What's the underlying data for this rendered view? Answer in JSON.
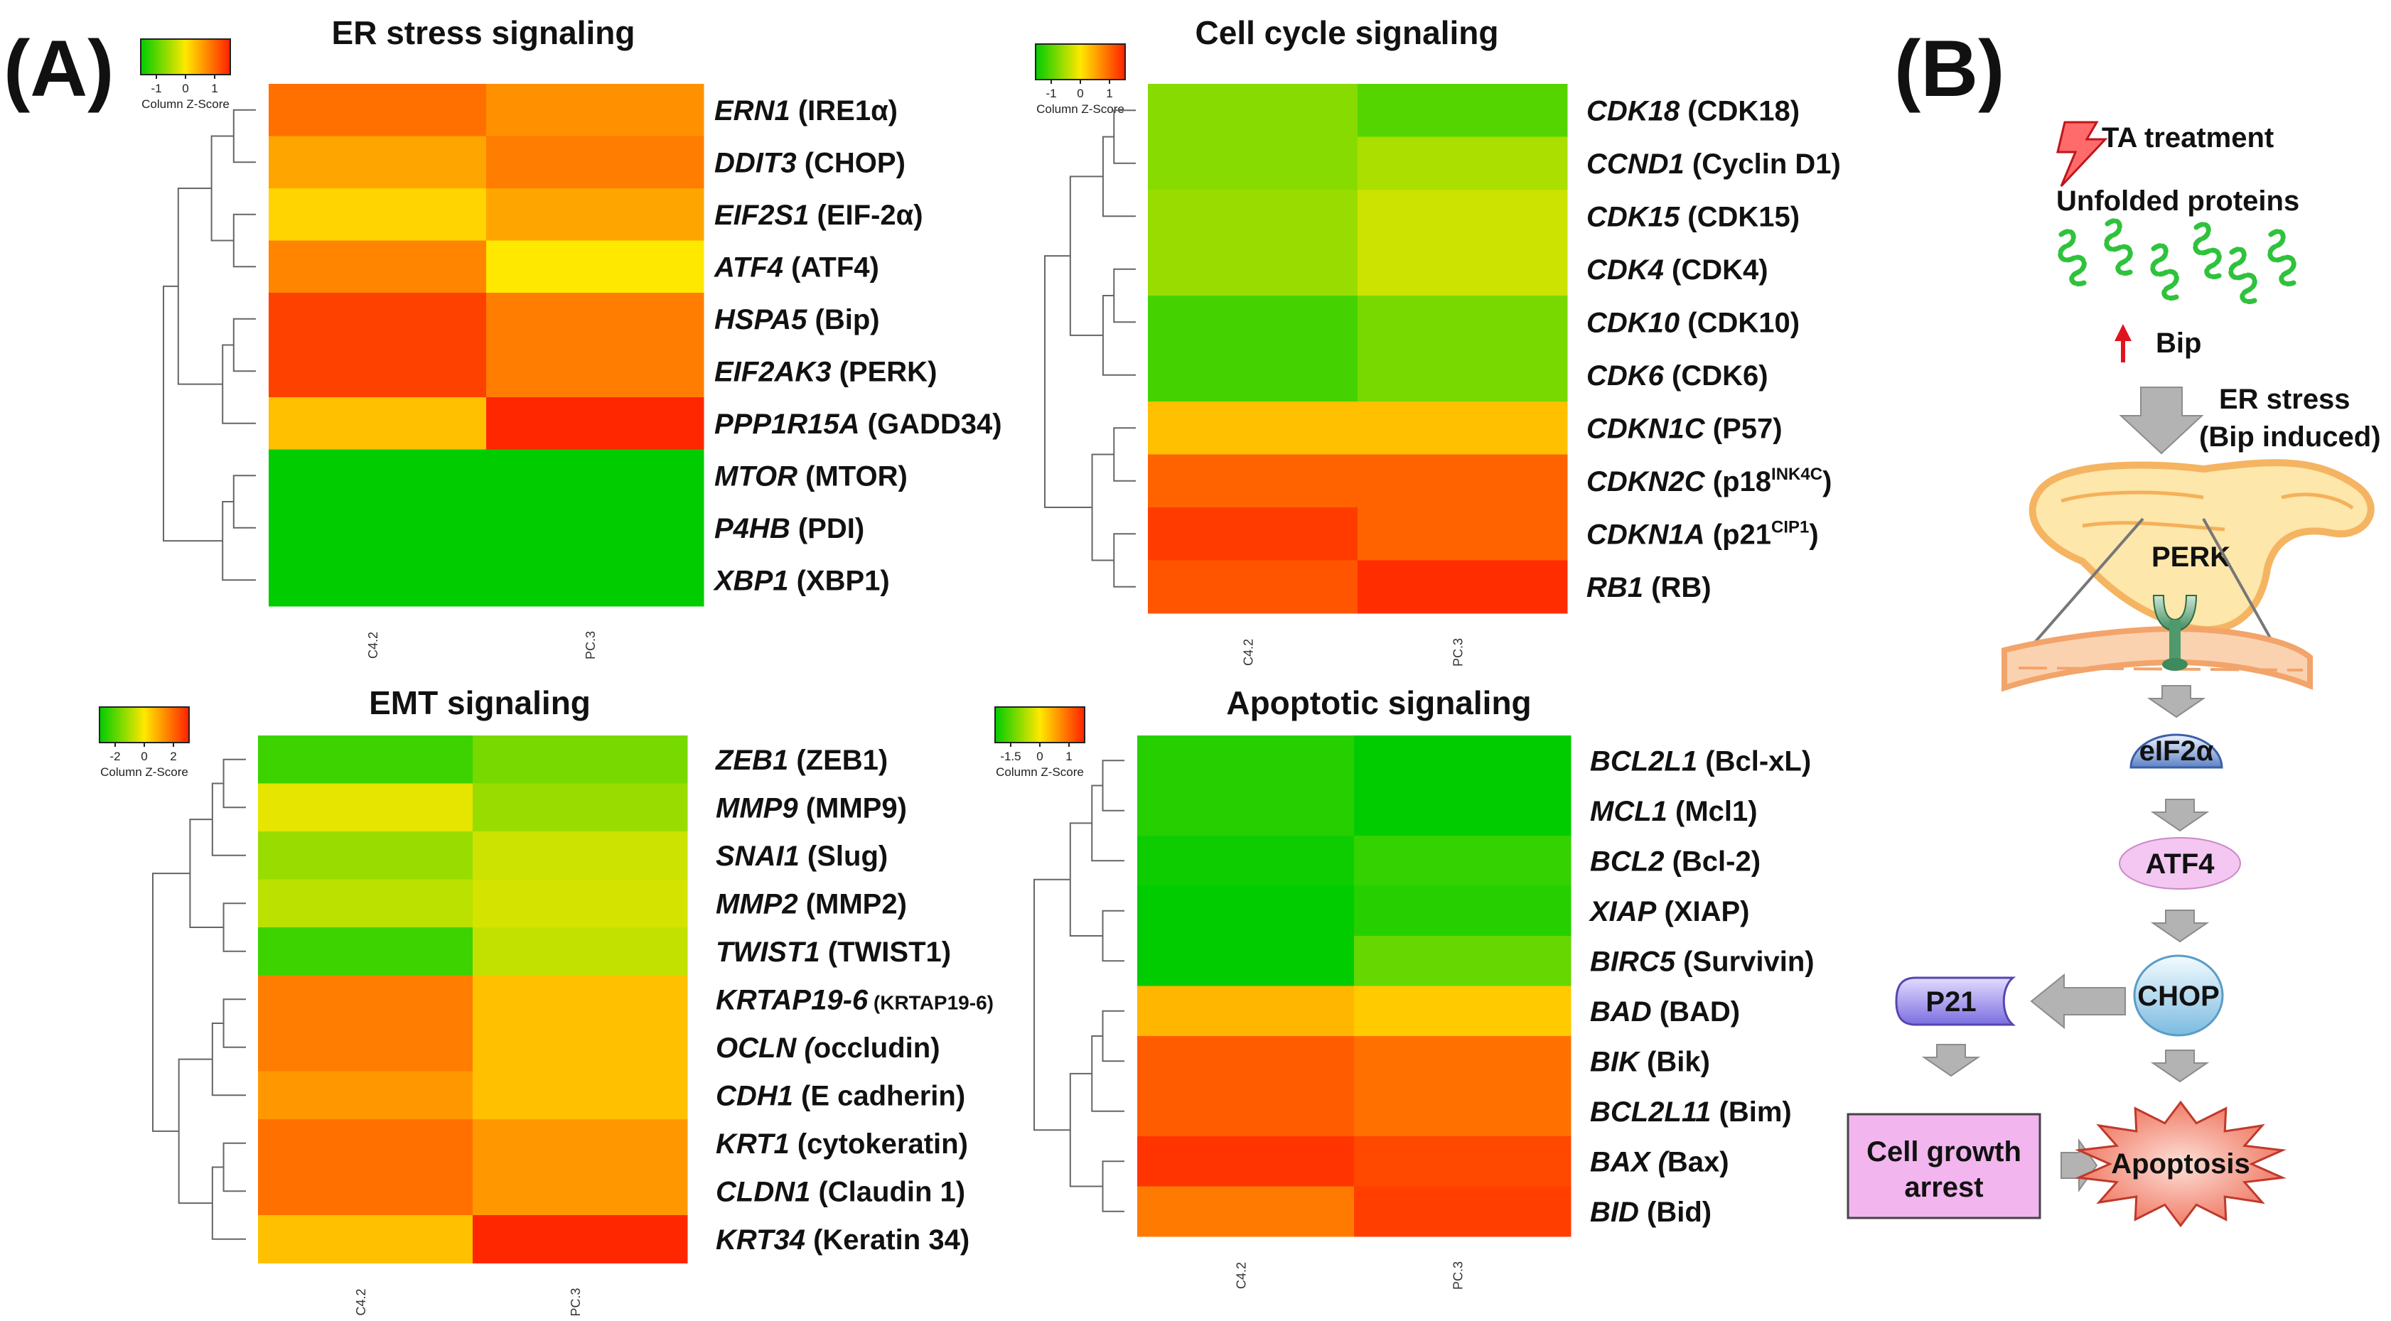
{
  "panel_labels": {
    "a": "(A)",
    "b": "(B)"
  },
  "legend": {
    "caption": "Column Z-Score"
  },
  "chart_data": [
    {
      "type": "heatmap",
      "title": "ER stress signaling",
      "columns": [
        "C4.2",
        "PC.3"
      ],
      "color_key": {
        "ticks": [
          "-1",
          "0",
          "1"
        ],
        "range": [
          -1.5,
          1.5
        ]
      },
      "rows": [
        {
          "gene": "ERN1",
          "protein": "(IRE1α)",
          "values": [
            0.9,
            0.65
          ]
        },
        {
          "gene": "DDIT3",
          "protein": "(CHOP)",
          "values": [
            0.5,
            0.8
          ]
        },
        {
          "gene": "EIF2S1",
          "protein": "(EIF-2α)",
          "values": [
            0.15,
            0.5
          ]
        },
        {
          "gene": "ATF4",
          "protein": "(ATF4)",
          "values": [
            0.75,
            0.0
          ]
        },
        {
          "gene": "HSPA5",
          "protein": "(Bip)",
          "values": [
            1.25,
            0.8
          ]
        },
        {
          "gene": "EIF2AK3",
          "protein": "(PERK)",
          "values": [
            1.25,
            0.8
          ]
        },
        {
          "gene": "PPP1R15A",
          "protein": "(GADD34)",
          "values": [
            0.3,
            1.45
          ]
        },
        {
          "gene": "MTOR",
          "protein": "(MTOR)",
          "values": [
            -1.5,
            -1.5
          ]
        },
        {
          "gene": "P4HB",
          "protein": "(PDI)",
          "values": [
            -1.5,
            -1.5
          ]
        },
        {
          "gene": "XBP1",
          "protein": "(XBP1)",
          "values": [
            -1.5,
            -1.5
          ]
        }
      ]
    },
    {
      "type": "heatmap",
      "title": "Cell cycle signaling",
      "columns": [
        "C4.2",
        "PC.3"
      ],
      "color_key": {
        "ticks": [
          "-1",
          "0",
          "1"
        ],
        "range": [
          -1.5,
          1.5
        ]
      },
      "rows": [
        {
          "gene": "CDK18",
          "protein": "(CDK18)",
          "values": [
            -0.7,
            -1.0
          ]
        },
        {
          "gene": "CCND1",
          "protein": "(Cyclin D1)",
          "values": [
            -0.7,
            -0.5
          ]
        },
        {
          "gene": "CDK15",
          "protein": "(CDK15)",
          "values": [
            -0.6,
            -0.3
          ]
        },
        {
          "gene": "CDK4",
          "protein": "(CDK4)",
          "values": [
            -0.6,
            -0.3
          ]
        },
        {
          "gene": "CDK10",
          "protein": "(CDK10)",
          "values": [
            -1.1,
            -0.8
          ]
        },
        {
          "gene": "CDK6",
          "protein": "(CDK6)",
          "values": [
            -1.1,
            -0.8
          ]
        },
        {
          "gene": "CDKN1C",
          "protein": "(P57)",
          "values": [
            0.3,
            0.3
          ]
        },
        {
          "gene": "CDKN2C",
          "protein": "",
          "super": "INK4C",
          "values": [
            1.0,
            1.0
          ]
        },
        {
          "gene": "CDKN1A",
          "protein": "",
          "super": "CIP1",
          "values": [
            1.3,
            1.0
          ]
        },
        {
          "gene": "RB1",
          "protein": "(RB)",
          "values": [
            1.1,
            1.4
          ]
        }
      ]
    },
    {
      "type": "heatmap",
      "title": "EMT signaling",
      "columns": [
        "C4.2",
        "PC.3"
      ],
      "color_key": {
        "ticks": [
          "-2",
          "0",
          "2"
        ],
        "range": [
          -3,
          3
        ]
      },
      "rows": [
        {
          "gene": "ZEB1",
          "protein": "(ZEB1)",
          "values": [
            -2.3,
            -1.6
          ]
        },
        {
          "gene": "MMP9",
          "protein": "(MMP9)",
          "values": [
            -0.3,
            -1.2
          ]
        },
        {
          "gene": "SNAI1",
          "protein": "(Slug)",
          "values": [
            -1.2,
            -0.6
          ]
        },
        {
          "gene": "MMP2",
          "protein": "(MMP2)",
          "values": [
            -0.8,
            -0.5
          ]
        },
        {
          "gene": "TWIST1",
          "protein": "(TWIST1)",
          "values": [
            -2.3,
            -0.7
          ]
        },
        {
          "gene": "KRTAP19-6",
          "protein": "(KRTAP19-6)",
          "values": [
            1.6,
            0.6
          ]
        },
        {
          "gene": "OCLN",
          "protein": "occludin)",
          "values": [
            1.6,
            0.6
          ]
        },
        {
          "gene": "CDH1",
          "protein": "(E cadherin)",
          "values": [
            1.2,
            0.6
          ]
        },
        {
          "gene": "KRT1",
          "protein": "(cytokeratin)",
          "values": [
            1.8,
            1.2
          ]
        },
        {
          "gene": "CLDN1",
          "protein": "(Claudin 1)",
          "values": [
            1.8,
            1.2
          ]
        },
        {
          "gene": "KRT34",
          "protein": "(Keratin 34)",
          "values": [
            0.6,
            2.9
          ]
        }
      ]
    },
    {
      "type": "heatmap",
      "title": "Apoptotic signaling",
      "columns": [
        "C4.2",
        "PC.3"
      ],
      "color_key": {
        "ticks": [
          "-1.5",
          "0",
          "1"
        ],
        "range": [
          -2,
          2
        ]
      },
      "rows": [
        {
          "gene": "BCL2L1",
          "protein": "(Bcl-xL)",
          "values": [
            -1.7,
            -2.0
          ]
        },
        {
          "gene": "MCL1",
          "protein": "(Mcl1)",
          "values": [
            -1.7,
            -2.0
          ]
        },
        {
          "gene": "BCL2",
          "protein": "(Bcl-2)",
          "values": [
            -1.9,
            -1.6
          ]
        },
        {
          "gene": "XIAP",
          "protein": "(XIAP)",
          "values": [
            -2.0,
            -1.7
          ]
        },
        {
          "gene": "BIRC5",
          "protein": "(Survivin)",
          "values": [
            -2.0,
            -1.2
          ]
        },
        {
          "gene": "BAD",
          "protein": "(BAD)",
          "values": [
            0.5,
            0.3
          ]
        },
        {
          "gene": "BIK",
          "protein": "(Bik)",
          "values": [
            1.4,
            1.2
          ]
        },
        {
          "gene": "BCL2L11",
          "protein": "(Bim)",
          "values": [
            1.4,
            1.2
          ]
        },
        {
          "gene": "BAX",
          "protein": "Bax)",
          "values": [
            1.8,
            1.6
          ]
        },
        {
          "gene": "BID",
          "protein": "(Bid)",
          "values": [
            1.1,
            1.7
          ]
        }
      ]
    }
  ],
  "pathway": {
    "ta_treatment": "TA treatment",
    "unfolded": "Unfolded proteins",
    "bip": "Bip",
    "er_stress_1": "ER stress",
    "er_stress_2": "(Bip induced)",
    "perk": "PERK",
    "eif2a": "eIF2α",
    "atf4": "ATF4",
    "chop": "CHOP",
    "p21": "P21",
    "arrest_1": "Cell growth",
    "arrest_2": "arrest",
    "apoptosis": "Apoptosis",
    "colors": {
      "arrow": "#b3b3b3",
      "eif2a_top": "#eef4ff",
      "eif2a_bottom": "#5d82c6",
      "atf4": "#f4c6f2",
      "chop_top": "#f3fbff",
      "chop_bottom": "#7bbbe0",
      "p21_top": "#e2dcff",
      "p21_bottom": "#7b6ee0",
      "arrest": "#f2b5ee",
      "apoptosis_top": "#fde0d8",
      "apoptosis_bottom": "#ee6a52",
      "er_fill": "#fde6a6",
      "er_edge": "#f5b05a",
      "bip_arrow": "#e0141e",
      "protein": "#2fc23c"
    }
  }
}
